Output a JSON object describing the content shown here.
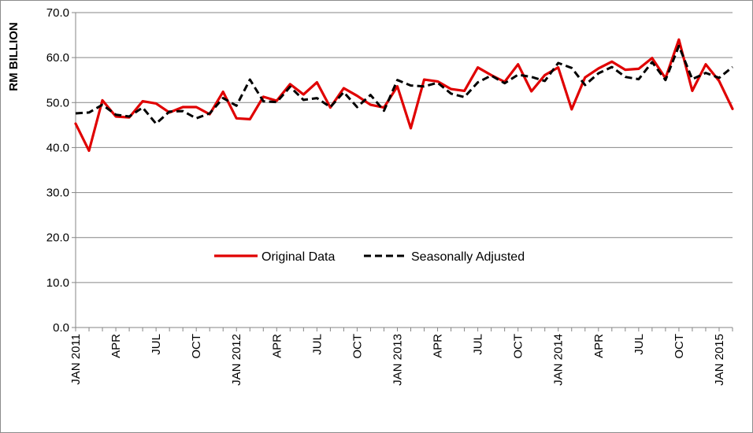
{
  "chart_data": {
    "type": "line",
    "title": "",
    "xlabel": "",
    "ylabel": "RM BILLION",
    "ylim": [
      0,
      70
    ],
    "yticks": [
      "0.0",
      "10.0",
      "20.0",
      "30.0",
      "40.0",
      "50.0",
      "60.0",
      "70.0"
    ],
    "grid": "horizontal",
    "legend_position": "center",
    "x_tick_labels": [
      "JAN 2011",
      "APR",
      "JUL",
      "OCT",
      "JAN 2012",
      "APR",
      "JUL",
      "OCT",
      "JAN 2013",
      "APR",
      "JUL",
      "OCT",
      "JAN 2014",
      "APR",
      "JUL",
      "OCT",
      "JAN 2015"
    ],
    "x": [
      "Jan 2011",
      "Feb 2011",
      "Mar 2011",
      "Apr 2011",
      "May 2011",
      "Jun 2011",
      "Jul 2011",
      "Aug 2011",
      "Sep 2011",
      "Oct 2011",
      "Nov 2011",
      "Dec 2011",
      "Jan 2012",
      "Feb 2012",
      "Mar 2012",
      "Apr 2012",
      "May 2012",
      "Jun 2012",
      "Jul 2012",
      "Aug 2012",
      "Sep 2012",
      "Oct 2012",
      "Nov 2012",
      "Dec 2012",
      "Jan 2013",
      "Feb 2013",
      "Mar 2013",
      "Apr 2013",
      "May 2013",
      "Jun 2013",
      "Jul 2013",
      "Aug 2013",
      "Sep 2013",
      "Oct 2013",
      "Nov 2013",
      "Dec 2013",
      "Jan 2014",
      "Feb 2014",
      "Mar 2014",
      "Apr 2014",
      "May 2014",
      "Jun 2014",
      "Jul 2014",
      "Aug 2014",
      "Sep 2014",
      "Oct 2014",
      "Nov 2014",
      "Dec 2014",
      "Jan 2015",
      "Feb 2015"
    ],
    "series": [
      {
        "name": "Original Data",
        "color": "#e00000",
        "style": "solid",
        "values": [
          45.3,
          39.3,
          50.5,
          46.9,
          46.7,
          50.3,
          49.8,
          47.8,
          49.0,
          49.0,
          47.4,
          52.4,
          46.5,
          46.3,
          51.3,
          50.4,
          54.1,
          51.8,
          54.5,
          48.9,
          53.2,
          51.5,
          49.5,
          48.9,
          53.6,
          44.3,
          55.1,
          54.7,
          53.0,
          52.6,
          57.8,
          56.1,
          54.6,
          58.5,
          52.5,
          56.1,
          57.8,
          48.5,
          55.6,
          57.6,
          59.1,
          57.3,
          57.5,
          59.9,
          55.4,
          64.0,
          52.6,
          58.5,
          54.8,
          48.6
        ]
      },
      {
        "name": "Seasonally Adjusted",
        "color": "#000000",
        "style": "dashed",
        "values": [
          47.6,
          47.8,
          49.5,
          47.3,
          46.9,
          48.9,
          45.3,
          48.0,
          48.1,
          46.5,
          47.6,
          51.0,
          49.3,
          55.1,
          50.3,
          50.1,
          53.5,
          50.6,
          51.0,
          49.0,
          52.3,
          49.0,
          51.7,
          48.2,
          55.0,
          53.8,
          53.6,
          54.4,
          52.0,
          51.2,
          54.5,
          56.0,
          54.3,
          56.2,
          55.7,
          54.8,
          58.8,
          57.7,
          53.9,
          56.5,
          57.9,
          55.7,
          55.2,
          59.0,
          55.0,
          62.6,
          55.2,
          56.6,
          55.5,
          57.9
        ]
      }
    ]
  }
}
